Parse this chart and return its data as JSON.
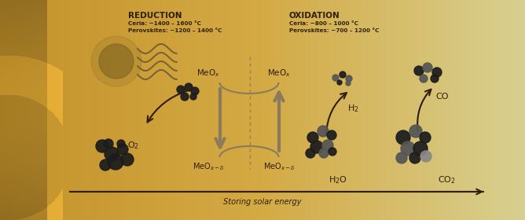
{
  "bg_left": "#c4922a",
  "bg_center": "#d4aa45",
  "bg_right": "#d8d090",
  "title_reduction": "REDUCTION",
  "title_oxidation": "OXIDATION",
  "sub1_reduction": "Ceria: ~1400 – 1600 °C",
  "sub2_reduction": "Perovskites: ~1200 – 1400 °C",
  "sub1_oxidation": "Ceria: ~800 – 1000 °C",
  "sub2_oxidation": "Perovskites: ~700 – 1200 °C",
  "label_solar": "Storing solar energy",
  "arrow_color": "#8B7B5A",
  "text_dark": "#2e1f05",
  "particle_dark": "#1c1c1c",
  "particle_mid": "#555555",
  "particle_light": "#888888",
  "sun_color": "#7a6020",
  "wave_color": "#6b5a30",
  "figsize": [
    6.68,
    2.8
  ],
  "dpi": 100
}
